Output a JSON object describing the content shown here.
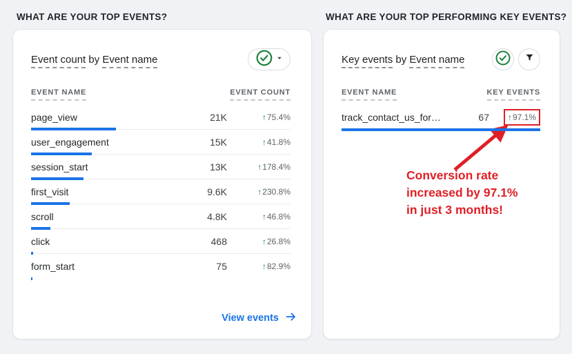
{
  "colors": {
    "blue": "#1a73e8",
    "green": "#137333",
    "green-icon": "#188038",
    "red": "#e01f26",
    "link": "#1a73e8",
    "bg": "#f0f2f5"
  },
  "icons": {
    "check": "check-circle-icon",
    "caret": "caret-down-icon",
    "filter": "filter-funnel-icon",
    "link_arrow": "arrow-right-icon",
    "up_arrow": "up-arrow-glyph",
    "up_glyph": "↑"
  },
  "left": {
    "section_title": "WHAT ARE YOUR TOP EVENTS?",
    "card": {
      "title": {
        "metric": "Event count",
        "joiner": "by",
        "dimension": "Event name"
      },
      "columns": {
        "name": "EVENT NAME",
        "value": "EVENT COUNT"
      },
      "rows": [
        {
          "name": "page_view",
          "value": 21000,
          "value_label": "21K",
          "change": "75.4%"
        },
        {
          "name": "user_engagement",
          "value": 15000,
          "value_label": "15K",
          "change": "41.8%"
        },
        {
          "name": "session_start",
          "value": 13000,
          "value_label": "13K",
          "change": "178.4%"
        },
        {
          "name": "first_visit",
          "value": 9600,
          "value_label": "9.6K",
          "change": "230.8%"
        },
        {
          "name": "scroll",
          "value": 4800,
          "value_label": "4.8K",
          "change": "46.8%"
        },
        {
          "name": "click",
          "value": 468,
          "value_label": "468",
          "change": "26.8%"
        },
        {
          "name": "form_start",
          "value": 75,
          "value_label": "75",
          "change": "82.9%"
        }
      ],
      "footer_link": "View events"
    }
  },
  "right": {
    "section_title": "WHAT ARE YOUR TOP PERFORMING KEY EVENTS?",
    "card": {
      "title": {
        "metric": "Key events",
        "joiner": "by",
        "dimension": "Event name"
      },
      "columns": {
        "name": "EVENT NAME",
        "value": "KEY EVENTS"
      },
      "rows": [
        {
          "name": "track_contact_us_for…",
          "value": 67,
          "value_label": "67",
          "change": "97.1%",
          "highlighted": true
        }
      ],
      "annotation": {
        "lines": [
          "Conversion rate",
          "increased by 97.1%",
          "in just 3 months!"
        ]
      }
    }
  }
}
